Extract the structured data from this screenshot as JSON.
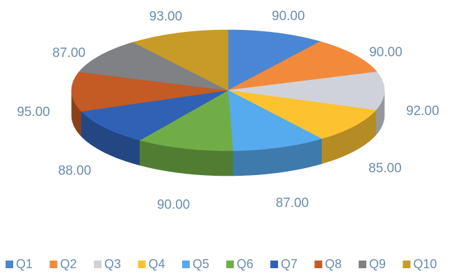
{
  "chart_data": {
    "type": "pie",
    "style": "3d",
    "title": "",
    "categories": [
      "Q1",
      "Q2",
      "Q3",
      "Q4",
      "Q5",
      "Q6",
      "Q7",
      "Q8",
      "Q9",
      "Q10"
    ],
    "values": [
      90.0,
      90.0,
      92.0,
      85.0,
      87.0,
      90.0,
      88.0,
      95.0,
      87.0,
      93.0
    ],
    "value_labels": [
      "90.00",
      "90.00",
      "92.00",
      "85.00",
      "87.00",
      "90.00",
      "88.00",
      "95.00",
      "87.00",
      "93.00"
    ],
    "colors": [
      "#4a86d4",
      "#f28a3c",
      "#cfd3d9",
      "#fcc230",
      "#56aaee",
      "#70ad47",
      "#2f62b5",
      "#c45a24",
      "#7f8184",
      "#c79b27"
    ],
    "legend_position": "bottom"
  }
}
